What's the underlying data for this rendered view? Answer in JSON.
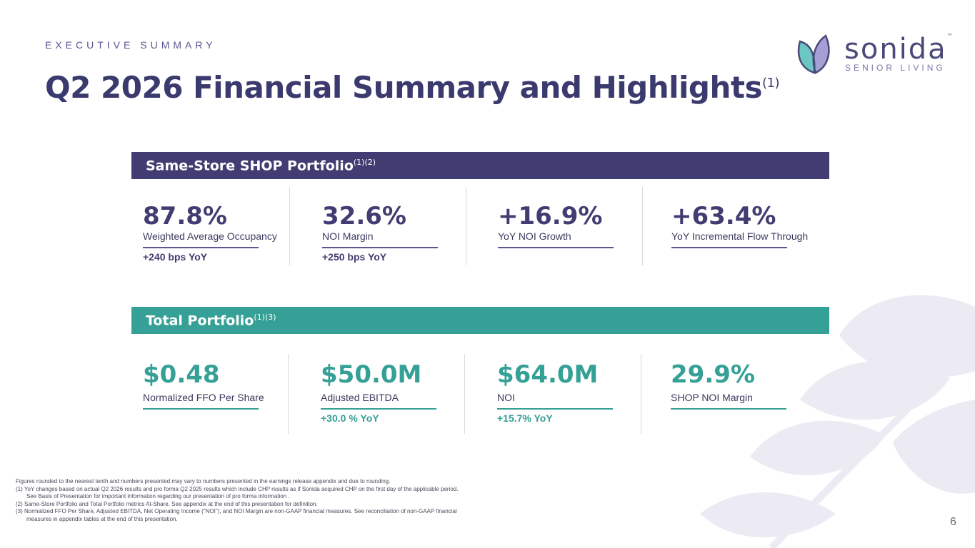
{
  "header": {
    "kicker": "EXECUTIVE SUMMARY",
    "title": "Q2 2026 Financial Summary and Highlights",
    "title_sup": "(1)"
  },
  "logo": {
    "wordmark": "sonida",
    "tm": "™",
    "tagline": "SENIOR LIVING",
    "colors": {
      "leaf_teal": "#6cc7c3",
      "leaf_purple": "#a49fd4",
      "outline": "#4a4a78"
    }
  },
  "shop": {
    "title": "Same-Store SHOP Portfolio",
    "sup": "(1)(2)",
    "color": "#413d72",
    "metrics": [
      {
        "value": "87.8%",
        "label": "Weighted Average Occupancy",
        "sub": "+240 bps YoY"
      },
      {
        "value": "32.6%",
        "label": "NOI Margin",
        "sub": "+250 bps YoY"
      },
      {
        "value": "+16.9%",
        "label": "YoY NOI Growth",
        "sub": ""
      },
      {
        "value": "+63.4%",
        "label": "YoY Incremental Flow Through",
        "sub": ""
      }
    ]
  },
  "total": {
    "title": "Total Portfolio",
    "sup": "(1)(3)",
    "color": "#35a095",
    "metrics": [
      {
        "value": "$0.48",
        "label": "Normalized FFO Per Share",
        "sub": ""
      },
      {
        "value": "$50.0M",
        "label": "Adjusted EBITDA",
        "sub": "+30.0 % YoY"
      },
      {
        "value": "$64.0M",
        "label": "NOI",
        "sub": "+15.7% YoY"
      },
      {
        "value": "29.9%",
        "label": "SHOP NOI Margin",
        "sub": ""
      }
    ]
  },
  "footnotes": {
    "intro": "Figures rounded to the nearest tenth and numbers presented may vary to numbers presented in the earnings release appendix and due to rounding.",
    "notes": [
      "(1) YoY changes based on actual Q2 2026 results and pro forma Q2 2025 results which include CHP results as if Sonida acquired CHP on the first day of the applicable period.  See Basis of Presentation for important information regarding our presentation of pro forma information .",
      "(2) Same-Store Portfolio and Total Portfolio metrics At-Share. See appendix at the end of this presentation for definition.",
      "(3) Normalized FFO Per Share, Adjusted EBITDA, Net Operating Income (\"NOI\"), and NOI Margin are non-GAAP financial measures. See reconciliation of non-GAAP financial measures in appendix tables at the end of this presentation."
    ]
  },
  "page_number": "6"
}
